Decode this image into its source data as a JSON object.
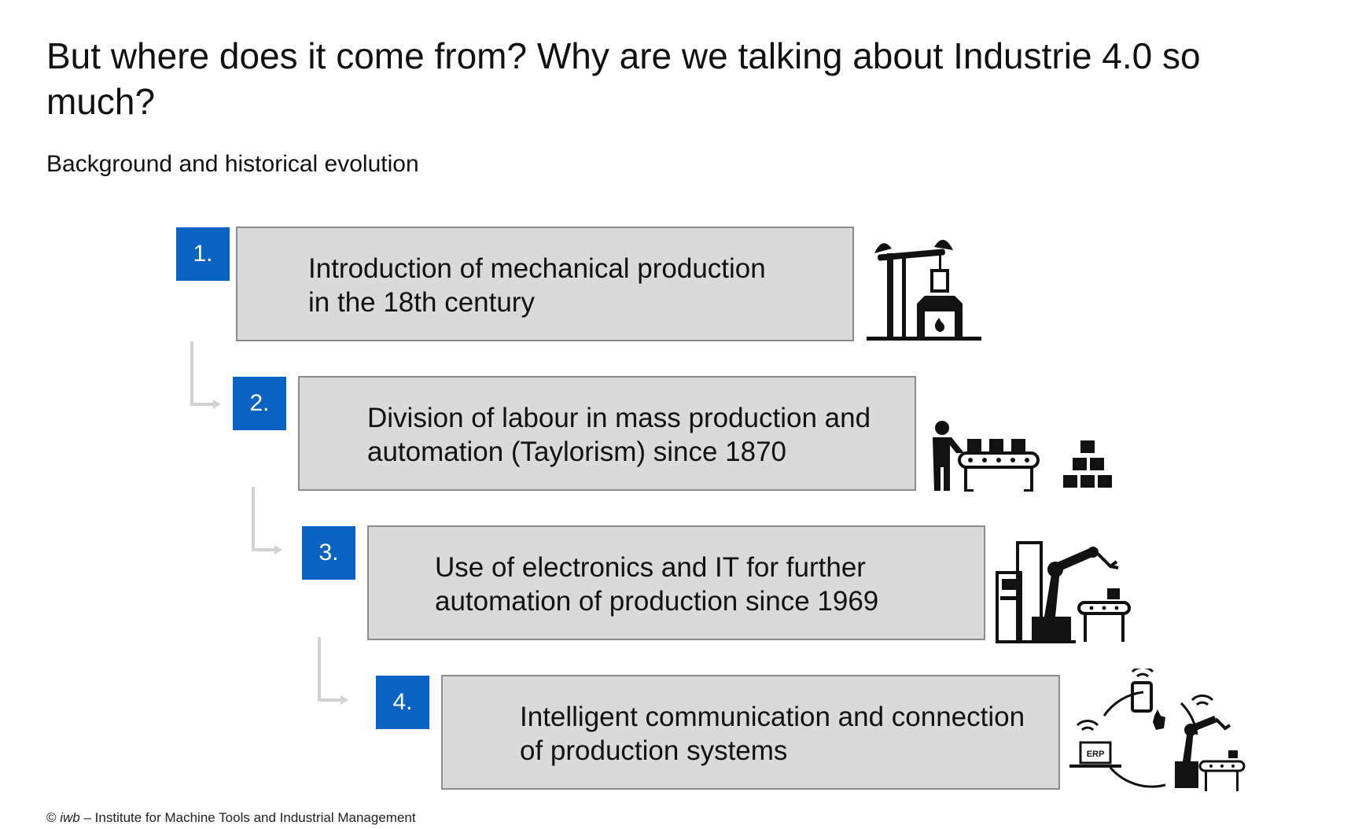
{
  "slide": {
    "title": "But where does it come from? Why are we talking about Industrie 4.0 so much?",
    "subtitle": "Background and historical evolution",
    "steps": [
      {
        "number": "1.",
        "line1": "Introduction of mechanical production",
        "line2": "in the 18th century",
        "icon": "steam-engine-icon"
      },
      {
        "number": "2.",
        "line1": "Division of labour in mass production and",
        "line2": "automation (Taylorism) since 1870",
        "icon": "assembly-line-icon"
      },
      {
        "number": "3.",
        "line1": "Use of electronics and IT for further",
        "line2": "automation of production since 1969",
        "icon": "robot-arm-icon"
      },
      {
        "number": "4.",
        "line1": "Intelligent communication and connection",
        "line2": "of production systems",
        "icon": "connected-systems-icon"
      }
    ],
    "erp_label": "ERP",
    "footer": {
      "prefix": "© ",
      "brand": "iwb",
      "text": " – Institute for Machine Tools and Industrial Management"
    }
  },
  "colors": {
    "accent": "#0a63c2",
    "box_fill": "#dadada",
    "box_border": "#8c8c8c",
    "connector": "#d2d2d2"
  }
}
